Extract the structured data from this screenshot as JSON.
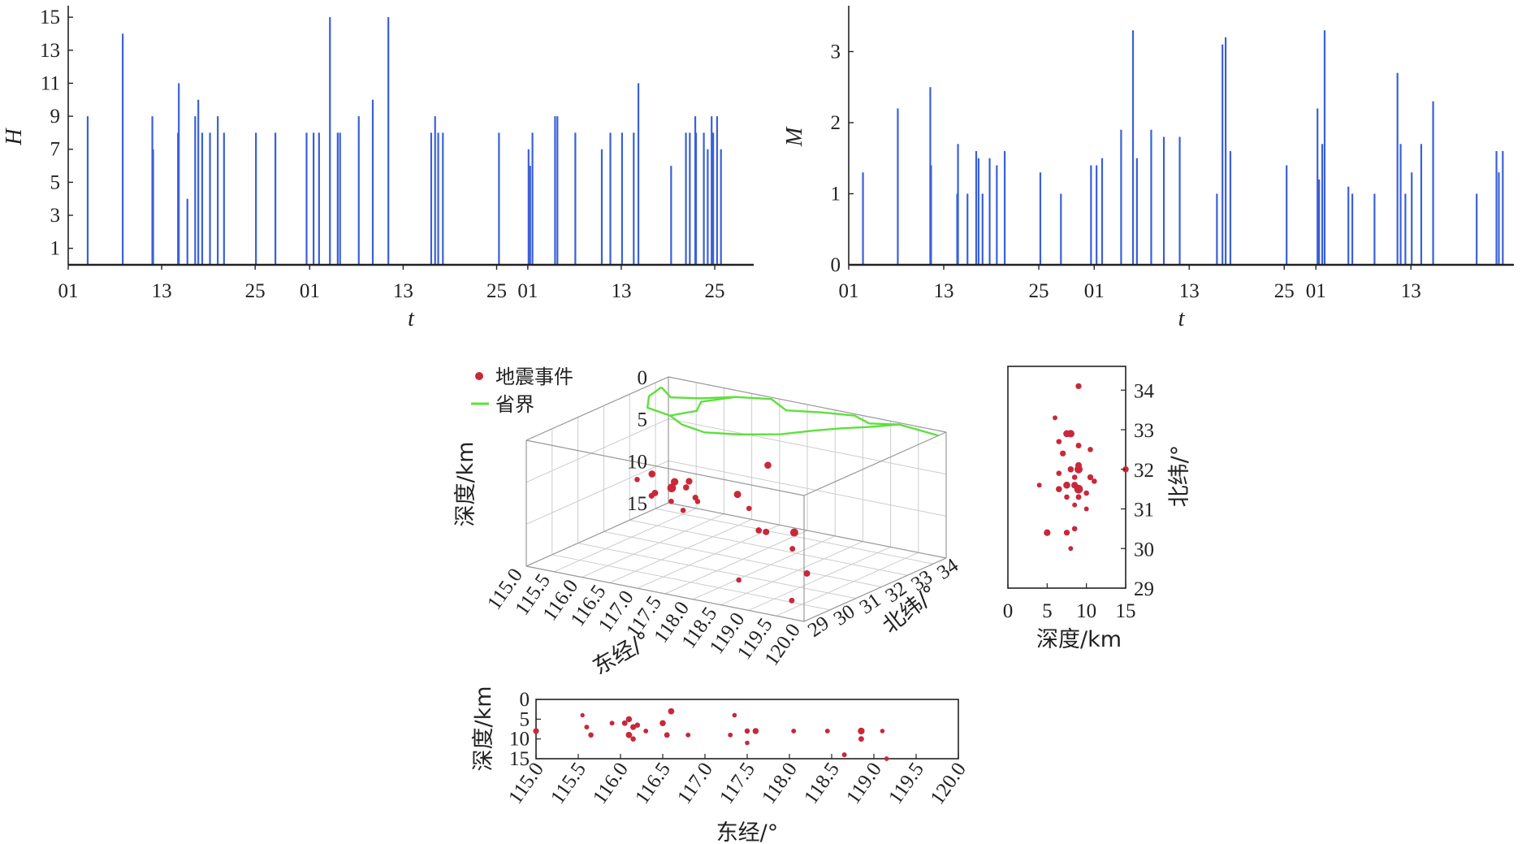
{
  "colors": {
    "spike": "#3a60d8",
    "event": "#c8283a",
    "event_light": "#e07a86",
    "boundary": "#5ee03c",
    "axis": "#222222",
    "grid": "#cccccc"
  },
  "chart_data": [
    {
      "id": "chart-h",
      "type": "bar",
      "subtype": "spike-series",
      "xlabel": "t",
      "ylabel": "H",
      "ylim": [
        0,
        15.5
      ],
      "yticks": [
        1,
        3,
        5,
        7,
        9,
        11,
        13,
        15
      ],
      "xrange": [
        0,
        88
      ],
      "xtick_labels": [
        "01",
        "13",
        "25",
        "01",
        "13",
        "25",
        "01",
        "13",
        "25"
      ],
      "xtick_positions": [
        0,
        12,
        24,
        31,
        43,
        55,
        59,
        71,
        83
      ],
      "x": [
        2.5,
        7,
        10.8,
        10.9,
        14.1,
        14.2,
        15.3,
        16.3,
        16.7,
        17.2,
        18.2,
        19.2,
        20,
        24.1,
        26.6,
        30.6,
        31.5,
        32.2,
        33.6,
        34.6,
        34.9,
        37.3,
        39.1,
        41.1,
        46.6,
        47.1,
        47.5,
        48.1,
        55.3,
        59.1,
        59.2,
        59.3,
        59.6,
        62.5,
        62.8,
        65.1,
        68.5,
        69.6,
        71.1,
        72.6,
        73.2,
        77.4,
        79.3,
        79.8,
        80.5,
        80.6,
        81.6,
        82.1,
        82.6,
        82.8,
        83.3,
        83.8
      ],
      "values": [
        9,
        14,
        9,
        7,
        8,
        11,
        4,
        9,
        10,
        8,
        8,
        9,
        8,
        8,
        8,
        8,
        8,
        8,
        15,
        8,
        8,
        9,
        10,
        15,
        8,
        9,
        8,
        8,
        8,
        7,
        6,
        6,
        8,
        9,
        9,
        8,
        7,
        8,
        8,
        8,
        11,
        6,
        8,
        8,
        9,
        8,
        8,
        7,
        9,
        8,
        9,
        7
      ]
    },
    {
      "id": "chart-m",
      "type": "bar",
      "subtype": "spike-series",
      "xlabel": "t",
      "ylabel": "M",
      "ylim": [
        0,
        3.6
      ],
      "yticks": [
        0,
        1,
        2,
        3
      ],
      "xrange": [
        0,
        84
      ],
      "xtick_labels": [
        "01",
        "13",
        "25",
        "01",
        "13",
        "25",
        "01",
        "13"
      ],
      "xtick_positions": [
        0,
        12,
        24,
        31,
        43,
        55,
        59,
        71
      ],
      "x": [
        1.8,
        6.2,
        10.3,
        10.4,
        13.7,
        13.8,
        15,
        16.1,
        16.4,
        16.9,
        17.8,
        18.7,
        19.7,
        24.2,
        26.8,
        30.6,
        31.3,
        32,
        34.4,
        35.9,
        36.4,
        38.2,
        39.8,
        41.8,
        46.5,
        47.2,
        47.6,
        48.2,
        55.3,
        59.2,
        59.3,
        59.4,
        59.8,
        60.1,
        63.1,
        63.6,
        66.4,
        69.3,
        69.7,
        70.3,
        71.1,
        72.3,
        73.8,
        79.3,
        81.8,
        82.1,
        82.6
      ],
      "values": [
        1.3,
        2.2,
        2.5,
        1.4,
        1,
        1.7,
        1,
        1.6,
        1.5,
        1,
        1.5,
        1.4,
        1.6,
        1.3,
        1,
        1.4,
        1.4,
        1.5,
        1.9,
        3.3,
        1.5,
        1.9,
        1.8,
        1.8,
        1,
        3.1,
        3.2,
        1.6,
        1.4,
        2.2,
        1.2,
        1.2,
        1.7,
        3.3,
        1.1,
        1,
        1,
        2.7,
        1.7,
        1,
        1.3,
        1.7,
        2.3,
        1,
        1.6,
        1.3,
        1.6
      ]
    },
    {
      "id": "chart-3d",
      "type": "scatter",
      "subtype": "scatter-3d",
      "legend": [
        {
          "label": "地震事件",
          "kind": "event"
        },
        {
          "label": "省界",
          "kind": "boundary"
        }
      ],
      "xlabel": "东经/°",
      "ylabel": "北纬/°",
      "zlabel": "深度/km",
      "xlim": [
        115,
        120
      ],
      "ylim": [
        29,
        34.5
      ],
      "zlim": [
        0,
        15
      ],
      "xtick_labels": [
        "115.0",
        "115.5",
        "116.0",
        "116.5",
        "117.0",
        "117.5",
        "118.0",
        "118.5",
        "119.0",
        "119.5",
        "120.0"
      ],
      "ytick_labels": [
        "29",
        "30",
        "31",
        "32",
        "33",
        "34"
      ],
      "ztick_labels": [
        "0",
        "5",
        "10",
        "15"
      ],
      "boundary_lines": [
        [
          [
            115.2,
            33.8
          ],
          [
            115.6,
            33.3
          ],
          [
            116,
            33.6
          ],
          [
            116.4,
            34.1
          ],
          [
            116.9,
            34.4
          ],
          [
            117.4,
            33.9
          ],
          [
            117.9,
            34.2
          ],
          [
            118.4,
            34.4
          ],
          [
            118.8,
            34.1
          ],
          [
            119.2,
            34.4
          ],
          [
            119.6,
            34.3
          ],
          [
            120,
            34.2
          ]
        ],
        [
          [
            116.4,
            34.1
          ],
          [
            116.1,
            33.4
          ],
          [
            116.3,
            32.8
          ],
          [
            116.1,
            32.2
          ],
          [
            116.5,
            31.8
          ],
          [
            117,
            31.6
          ],
          [
            117.5,
            31.9
          ],
          [
            118,
            32.4
          ],
          [
            118.3,
            33
          ],
          [
            118.6,
            33.5
          ],
          [
            118.9,
            33.9
          ],
          [
            119.2,
            34.4
          ]
        ],
        [
          [
            115.2,
            33.8
          ],
          [
            115.3,
            33.1
          ],
          [
            115.6,
            32.4
          ],
          [
            116.1,
            32.2
          ]
        ]
      ],
      "events": [
        {
          "lon": 116.1,
          "lat": 31.5,
          "depth": 6.0,
          "mag": 1.6
        },
        {
          "lon": 116.2,
          "lat": 31.4,
          "depth": 8.0,
          "mag": 1.4
        },
        {
          "lon": 116.5,
          "lat": 31.4,
          "depth": 7.0,
          "mag": 2.2
        },
        {
          "lon": 116.6,
          "lat": 31.3,
          "depth": 6.0,
          "mag": 1.8
        },
        {
          "lon": 116.4,
          "lat": 31.6,
          "depth": 9.0,
          "mag": 1.0
        },
        {
          "lon": 116.8,
          "lat": 31.2,
          "depth": 9.0,
          "mag": 1.0
        },
        {
          "lon": 117.0,
          "lat": 31.0,
          "depth": 5.0,
          "mag": 1.5
        },
        {
          "lon": 117.5,
          "lat": 31.8,
          "depth": 7.0,
          "mag": 1.7
        },
        {
          "lon": 117.8,
          "lat": 31.6,
          "depth": 8.0,
          "mag": 1.0
        },
        {
          "lon": 118.0,
          "lat": 31.9,
          "depth": 3.0,
          "mag": 1.6
        },
        {
          "lon": 118.2,
          "lat": 31.4,
          "depth": 10.0,
          "mag": 1.4
        },
        {
          "lon": 118.3,
          "lat": 30.9,
          "depth": 9.0,
          "mag": 1.3
        },
        {
          "lon": 118.8,
          "lat": 31.2,
          "depth": 9.0,
          "mag": 2.0
        },
        {
          "lon": 119.0,
          "lat": 30.7,
          "depth": 10.0,
          "mag": 1.1
        },
        {
          "lon": 119.4,
          "lat": 30.4,
          "depth": 12.0,
          "mag": 1.4
        },
        {
          "lon": 119.5,
          "lat": 29.6,
          "depth": 14.0,
          "mag": 1.1
        },
        {
          "lon": 118.5,
          "lat": 29.7,
          "depth": 13.0,
          "mag": 1.0
        },
        {
          "lon": 117.2,
          "lat": 30.9,
          "depth": 7.0,
          "mag": 1.0
        },
        {
          "lon": 116.0,
          "lat": 31.7,
          "depth": 9.0,
          "mag": 1.2
        },
        {
          "lon": 115.6,
          "lat": 32.0,
          "depth": 8.0,
          "mag": 1.0
        },
        {
          "lon": 116.9,
          "lat": 31.1,
          "depth": 6.0,
          "mag": 1.3
        },
        {
          "lon": 117.3,
          "lat": 30.6,
          "depth": 6.0,
          "mag": 1.2
        }
      ]
    },
    {
      "id": "chart-lat-depth",
      "type": "scatter",
      "subtype": "projection",
      "xlabel": "深度/km",
      "ylabel": "北纬/°",
      "xlim": [
        0,
        15
      ],
      "ylim": [
        29,
        34.6
      ],
      "xticks": [
        "0",
        "5",
        "10",
        "15"
      ],
      "yticks": [
        "29",
        "30",
        "31",
        "32",
        "33",
        "34"
      ],
      "points": [
        {
          "depth": 9.0,
          "lat": 34.1,
          "mag": 1.2
        },
        {
          "depth": 6.0,
          "lat": 33.3,
          "mag": 0.8
        },
        {
          "depth": 7.5,
          "lat": 32.9,
          "mag": 1.6
        },
        {
          "depth": 8.0,
          "lat": 32.9,
          "mag": 1.8
        },
        {
          "depth": 6.5,
          "lat": 32.7,
          "mag": 1.0
        },
        {
          "depth": 9.0,
          "lat": 32.6,
          "mag": 1.1
        },
        {
          "depth": 10.5,
          "lat": 32.5,
          "mag": 1.0
        },
        {
          "depth": 7.0,
          "lat": 32.4,
          "mag": 1.2
        },
        {
          "depth": 9.0,
          "lat": 32.1,
          "mag": 1.4
        },
        {
          "depth": 8.0,
          "lat": 32.0,
          "mag": 1.3
        },
        {
          "depth": 9.0,
          "lat": 32.0,
          "mag": 2.0
        },
        {
          "depth": 6.5,
          "lat": 31.9,
          "mag": 1.0
        },
        {
          "depth": 10.5,
          "lat": 31.8,
          "mag": 1.2
        },
        {
          "depth": 11.0,
          "lat": 31.7,
          "mag": 1.0
        },
        {
          "depth": 4.0,
          "lat": 31.6,
          "mag": 0.8
        },
        {
          "depth": 7.5,
          "lat": 31.6,
          "mag": 1.6
        },
        {
          "depth": 8.5,
          "lat": 31.6,
          "mag": 1.5
        },
        {
          "depth": 6.5,
          "lat": 31.5,
          "mag": 1.3
        },
        {
          "depth": 9.0,
          "lat": 31.5,
          "mag": 2.2
        },
        {
          "depth": 10.0,
          "lat": 31.4,
          "mag": 1.0
        },
        {
          "depth": 7.5,
          "lat": 31.3,
          "mag": 1.0
        },
        {
          "depth": 9.0,
          "lat": 31.3,
          "mag": 1.1
        },
        {
          "depth": 8.5,
          "lat": 31.1,
          "mag": 0.8
        },
        {
          "depth": 10.0,
          "lat": 31.0,
          "mag": 0.8
        },
        {
          "depth": 5.0,
          "lat": 30.4,
          "mag": 1.5
        },
        {
          "depth": 7.5,
          "lat": 30.4,
          "mag": 1.2
        },
        {
          "depth": 8.5,
          "lat": 30.5,
          "mag": 1.0
        },
        {
          "depth": 8.0,
          "lat": 30.0,
          "mag": 0.8
        },
        {
          "depth": 15.0,
          "lat": 32.0,
          "mag": 1.3
        },
        {
          "depth": 8.5,
          "lat": 31.8,
          "mag": 1.0
        }
      ]
    },
    {
      "id": "chart-lon-depth",
      "type": "scatter",
      "subtype": "projection",
      "xlabel": "东经/°",
      "ylabel": "深度/km",
      "xlim": [
        115,
        120
      ],
      "ylim": [
        0,
        15
      ],
      "xticks": [
        "115.0",
        "115.5",
        "116.0",
        "116.5",
        "117.0",
        "117.5",
        "118.0",
        "118.5",
        "119.0",
        "119.5",
        "120.0"
      ],
      "yticks": [
        "0",
        "5",
        "10",
        "15"
      ],
      "points": [
        {
          "lon": 115.0,
          "depth": 8.0,
          "mag": 1.4
        },
        {
          "lon": 115.55,
          "depth": 4.0,
          "mag": 0.8
        },
        {
          "lon": 115.6,
          "depth": 7.0,
          "mag": 1.0
        },
        {
          "lon": 115.65,
          "depth": 9.0,
          "mag": 1.2
        },
        {
          "lon": 115.9,
          "depth": 6.0,
          "mag": 1.0
        },
        {
          "lon": 116.05,
          "depth": 6.0,
          "mag": 1.3
        },
        {
          "lon": 116.1,
          "depth": 5.0,
          "mag": 1.5
        },
        {
          "lon": 116.1,
          "depth": 9.0,
          "mag": 1.6
        },
        {
          "lon": 116.15,
          "depth": 7.0,
          "mag": 1.4
        },
        {
          "lon": 116.15,
          "depth": 10.0,
          "mag": 1.2
        },
        {
          "lon": 116.2,
          "depth": 6.5,
          "mag": 1.2
        },
        {
          "lon": 116.3,
          "depth": 8.0,
          "mag": 1.0
        },
        {
          "lon": 116.5,
          "depth": 6.0,
          "mag": 1.5
        },
        {
          "lon": 116.55,
          "depth": 9.0,
          "mag": 1.3
        },
        {
          "lon": 116.6,
          "depth": 3.0,
          "mag": 1.6
        },
        {
          "lon": 116.8,
          "depth": 9.0,
          "mag": 1.0
        },
        {
          "lon": 117.3,
          "depth": 9.0,
          "mag": 1.0
        },
        {
          "lon": 117.35,
          "depth": 4.0,
          "mag": 0.9
        },
        {
          "lon": 117.5,
          "depth": 8.0,
          "mag": 1.2
        },
        {
          "lon": 117.6,
          "depth": 8.0,
          "mag": 1.5
        },
        {
          "lon": 117.5,
          "depth": 11.0,
          "mag": 0.9
        },
        {
          "lon": 118.05,
          "depth": 8.0,
          "mag": 1.0
        },
        {
          "lon": 118.45,
          "depth": 8.0,
          "mag": 1.0
        },
        {
          "lon": 118.65,
          "depth": 14.0,
          "mag": 1.0
        },
        {
          "lon": 118.85,
          "depth": 8.0,
          "mag": 1.8
        },
        {
          "lon": 118.85,
          "depth": 10.0,
          "mag": 1.3
        },
        {
          "lon": 119.1,
          "depth": 8.0,
          "mag": 0.9
        },
        {
          "lon": 119.15,
          "depth": 15.0,
          "mag": 0.9
        }
      ]
    }
  ]
}
